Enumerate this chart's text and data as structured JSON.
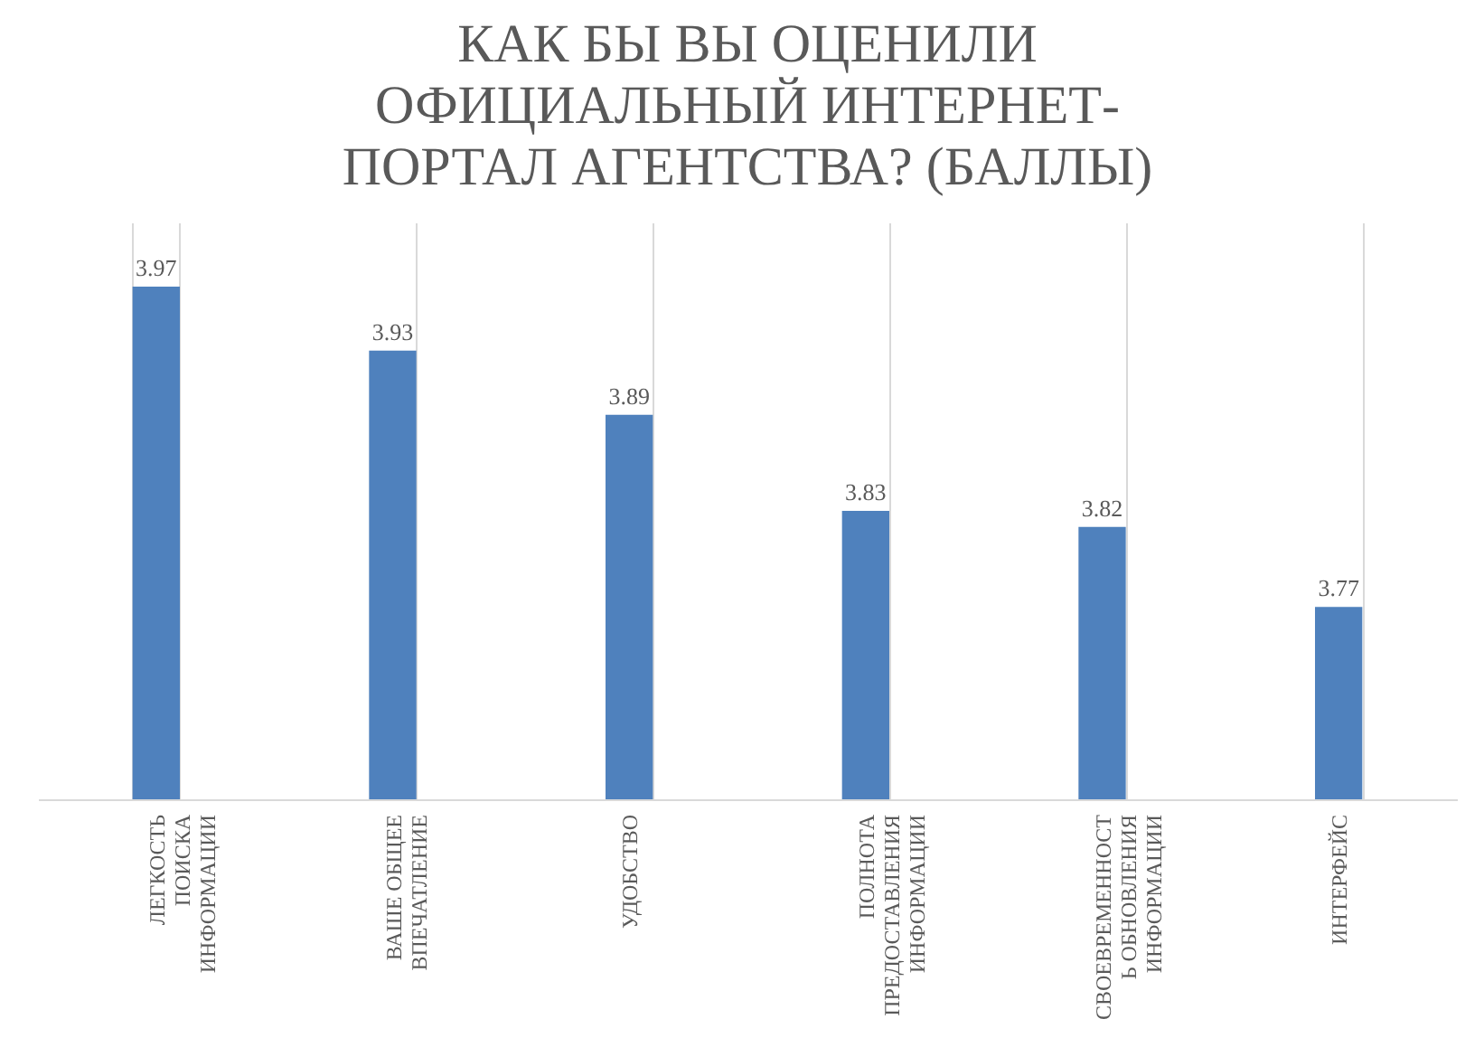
{
  "chart_data": {
    "type": "bar",
    "title": "КАК БЫ ВЫ ОЦЕНИЛИ ОФИЦИАЛЬНЫЙ ИНТЕРНЕТ-ПОРТАЛ АГЕНТСТВА? (БАЛЛЫ)",
    "categories": [
      "ЛЕГКОСТЬ ПОИСКА ИНФОРМАЦИИ",
      "ВАШЕ ОБЩЕЕ ВПЕЧАТЛЕНИЕ",
      "УДОБСТВО",
      "ПОЛНОТА ПРЕДОСТАВЛЕНИЯ ИНФОРМАЦИИ",
      "СВОЕВРЕМЕННОСТЬ ОБНОВЛЕНИЯ ИНФОРМАЦИИ",
      "ИНТЕРФЕЙС"
    ],
    "values": [
      3.97,
      3.93,
      3.89,
      3.83,
      3.82,
      3.77
    ],
    "color": "#4f81bd",
    "ylim": [
      3.65,
      4.01
    ],
    "data_labels": true,
    "grid": "x"
  }
}
